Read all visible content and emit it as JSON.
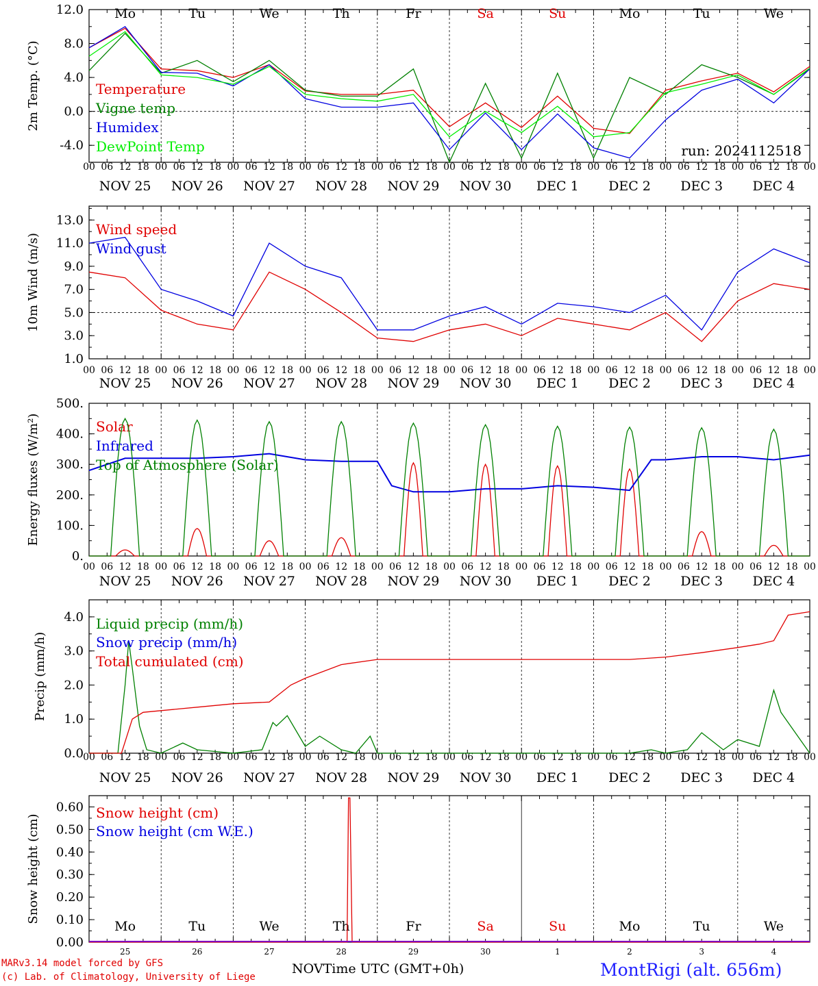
{
  "colors": {
    "red": "#e00000",
    "green": "#008000",
    "blue": "#0000e0",
    "lightgreen": "#00ee00",
    "purple": "#8000c0"
  },
  "footer": {
    "credit_line1": "MARv3.14 model forced by GFS",
    "credit_line2": "(c) Lab. of Climatology, University of Liege",
    "xaxis_label": "NOVTime UTC (GMT+0h)",
    "station": "MontRigi (alt. 656m)"
  },
  "chart_data": [
    {
      "type": "line",
      "ylabel": "2m Temp. (°C)",
      "ylim": [
        -6,
        12
      ],
      "yticks": [
        "12.0",
        "8.0",
        "4.0",
        "0.0",
        "-4.0"
      ],
      "ytick_values": [
        12,
        8,
        4,
        0,
        -4
      ],
      "reference_line": 0,
      "weekdays": [
        "Mo",
        "Tu",
        "We",
        "Th",
        "Fr",
        "Sa",
        "Su",
        "Mo",
        "Tu",
        "We"
      ],
      "weekday_colors": [
        "black",
        "black",
        "black",
        "black",
        "black",
        "red",
        "red",
        "black",
        "black",
        "black"
      ],
      "hour_ticks": [
        "00",
        "06",
        "12",
        "18"
      ],
      "date_labels": [
        "NOV 25",
        "NOV 26",
        "NOV 27",
        "NOV 28",
        "NOV 29",
        "NOV 30",
        "DEC  1",
        "DEC  2",
        "DEC  3",
        "DEC  4"
      ],
      "annotation": "run: 2024112518",
      "x_day": [
        0,
        0.5,
        1,
        1.5,
        2,
        2.5,
        3,
        3.5,
        4,
        4.5,
        5,
        5.5,
        6,
        6.5,
        7,
        7.5,
        8,
        8.5,
        9,
        9.5,
        10
      ],
      "series": [
        {
          "name": "Temperature",
          "color": "red",
          "values": [
            7.5,
            9.8,
            5.0,
            4.8,
            4.0,
            5.5,
            2.4,
            2.0,
            2.0,
            2.5,
            -1.8,
            1.0,
            -1.9,
            1.8,
            -2.0,
            -2.6,
            2.5,
            3.6,
            4.5,
            2.3,
            5.3
          ]
        },
        {
          "name": "Vigne temp",
          "color": "green",
          "values": [
            4.8,
            9.2,
            4.5,
            6.0,
            3.5,
            6.0,
            2.5,
            1.8,
            1.8,
            5.0,
            -6.0,
            3.3,
            -5.5,
            4.5,
            -5.5,
            4.0,
            2.0,
            5.5,
            4.0,
            2.0,
            5.0
          ]
        },
        {
          "name": "Humidex",
          "color": "blue",
          "values": [
            7.5,
            10.0,
            4.6,
            4.5,
            3.0,
            5.5,
            1.5,
            0.5,
            0.5,
            1.0,
            -4.5,
            -0.2,
            -4.5,
            -0.3,
            -4.3,
            -5.5,
            -1.0,
            2.5,
            3.8,
            1.0,
            5.0
          ]
        },
        {
          "name": "DewPoint Temp",
          "color": "lightgreen",
          "values": [
            6.5,
            9.4,
            4.3,
            4.0,
            3.2,
            5.3,
            2.0,
            1.5,
            1.2,
            2.0,
            -3.0,
            0.0,
            -2.5,
            0.6,
            -3.0,
            -2.5,
            2.2,
            3.2,
            4.3,
            2.0,
            5.1
          ]
        }
      ]
    },
    {
      "type": "line",
      "ylabel": "10m Wind (m/s)",
      "ylim": [
        1,
        14.2
      ],
      "yticks": [
        "13.0",
        "11.0",
        "9.0",
        "7.0",
        "5.0",
        "3.0",
        "1.0"
      ],
      "ytick_values": [
        13,
        11,
        9,
        7,
        5,
        3,
        1
      ],
      "reference_line": 5,
      "hour_ticks": [
        "00",
        "06",
        "12",
        "18"
      ],
      "date_labels": [
        "NOV 25",
        "NOV 26",
        "NOV 27",
        "NOV 28",
        "NOV 29",
        "NOV 30",
        "DEC  1",
        "DEC  2",
        "DEC  3",
        "DEC  4"
      ],
      "x_day": [
        0,
        0.5,
        1,
        1.5,
        2,
        2.5,
        3,
        3.5,
        4,
        4.5,
        5,
        5.5,
        6,
        6.5,
        7,
        7.5,
        8,
        8.5,
        9,
        9.5,
        10
      ],
      "series": [
        {
          "name": "Wind speed",
          "color": "red",
          "values": [
            8.5,
            8.0,
            5.2,
            4.0,
            3.5,
            8.5,
            7.0,
            5.0,
            2.8,
            2.5,
            3.5,
            4.0,
            3.0,
            4.5,
            4.0,
            3.5,
            5.0,
            2.5,
            6.0,
            7.5,
            7.0
          ]
        },
        {
          "name": "Wind gust",
          "color": "blue",
          "values": [
            11.0,
            11.5,
            7.0,
            6.0,
            4.7,
            11.0,
            9.0,
            8.0,
            3.5,
            3.5,
            4.7,
            5.5,
            4.0,
            5.8,
            5.5,
            5.0,
            6.5,
            3.5,
            8.5,
            10.5,
            9.3
          ]
        }
      ]
    },
    {
      "type": "line",
      "ylabel": "Energy fluxes (W/m²)",
      "ylim": [
        0,
        500
      ],
      "yticks": [
        "500.",
        "400.",
        "300.",
        "200.",
        "100.",
        "0."
      ],
      "ytick_values": [
        500,
        400,
        300,
        200,
        100,
        0
      ],
      "hour_ticks": [
        "00",
        "06",
        "12",
        "18"
      ],
      "date_labels": [
        "NOV 25",
        "NOV 26",
        "NOV 27",
        "NOV 28",
        "NOV 29",
        "NOV 30",
        "DEC  1",
        "DEC  2",
        "DEC  3",
        "DEC  4"
      ],
      "series": [
        {
          "name": "Solar",
          "color": "red",
          "daily_peak": [
            20,
            90,
            50,
            60,
            305,
            300,
            295,
            285,
            80,
            35
          ]
        },
        {
          "name": "Infrared",
          "color": "blue",
          "x_day": [
            0,
            0.5,
            1,
            1.5,
            2,
            2.5,
            3,
            3.5,
            4,
            4.2,
            4.5,
            5,
            5.5,
            6,
            6.5,
            7,
            7.5,
            7.8,
            8,
            8.5,
            9,
            9.5,
            10
          ],
          "values": [
            280,
            320,
            320,
            320,
            325,
            335,
            315,
            310,
            310,
            230,
            210,
            210,
            220,
            220,
            230,
            225,
            215,
            315,
            315,
            325,
            325,
            315,
            330
          ]
        },
        {
          "name": "Top of Atmosphere (Solar)",
          "color": "green",
          "daily_peak": [
            450,
            445,
            440,
            440,
            435,
            430,
            425,
            422,
            420,
            415
          ]
        }
      ]
    },
    {
      "type": "line",
      "ylabel": "Precip (mm/h)",
      "ylim": [
        0,
        4.5
      ],
      "yticks": [
        "4.0",
        "3.0",
        "2.0",
        "1.0",
        "0.0"
      ],
      "ytick_values": [
        4,
        3,
        2,
        1,
        0
      ],
      "hour_ticks": [
        "00",
        "06",
        "12",
        "18"
      ],
      "date_labels": [
        "NOV 25",
        "NOV 26",
        "NOV 27",
        "NOV 28",
        "NOV 29",
        "NOV 30",
        "DEC  1",
        "DEC  2",
        "DEC  3",
        "DEC  4"
      ],
      "series": [
        {
          "name": "Liquid precip (mm/h)",
          "color": "green",
          "x_day": [
            0,
            0.4,
            0.5,
            0.55,
            0.6,
            0.7,
            0.8,
            1,
            1.3,
            1.5,
            2,
            2.4,
            2.55,
            2.6,
            2.75,
            3,
            3.2,
            3.5,
            3.7,
            3.9,
            4.0,
            5,
            7.5,
            7.8,
            8,
            8.3,
            8.5,
            8.8,
            9,
            9.3,
            9.5,
            9.6,
            10
          ],
          "values": [
            0,
            0,
            2.0,
            3.3,
            2.5,
            0.8,
            0.1,
            0,
            0.3,
            0.1,
            0,
            0.1,
            0.9,
            0.8,
            1.1,
            0.2,
            0.5,
            0.1,
            0,
            0.5,
            0,
            0,
            0,
            0.1,
            0,
            0.1,
            0.6,
            0.1,
            0.4,
            0.2,
            1.85,
            1.2,
            0
          ]
        },
        {
          "name": "Snow precip (mm/h)",
          "color": "blue",
          "values": []
        },
        {
          "name": "Total cumulated (cm)",
          "color": "red",
          "x_day": [
            0,
            0.45,
            0.6,
            0.75,
            1,
            1.5,
            2,
            2.5,
            2.8,
            3,
            3.5,
            4,
            5,
            6,
            7,
            7.5,
            8,
            8.5,
            9,
            9.3,
            9.5,
            9.7,
            10
          ],
          "values": [
            0,
            0,
            1.0,
            1.2,
            1.25,
            1.35,
            1.45,
            1.5,
            2.0,
            2.2,
            2.6,
            2.75,
            2.75,
            2.75,
            2.75,
            2.75,
            2.82,
            2.95,
            3.1,
            3.2,
            3.3,
            4.05,
            4.15
          ]
        }
      ]
    },
    {
      "type": "line",
      "ylabel": "Snow height (cm)",
      "ylim": [
        0,
        0.65
      ],
      "yticks": [
        "0.60",
        "0.50",
        "0.40",
        "0.30",
        "0.20",
        "0.10",
        "0.00"
      ],
      "ytick_values": [
        0.6,
        0.5,
        0.4,
        0.3,
        0.2,
        0.1,
        0
      ],
      "weekdays": [
        "Mo",
        "Tu",
        "We",
        "Th",
        "Fr",
        "Sa",
        "Su",
        "Mo",
        "Tu",
        "We"
      ],
      "weekday_colors": [
        "black",
        "black",
        "black",
        "black",
        "black",
        "red",
        "red",
        "black",
        "black",
        "black"
      ],
      "day_numbers": [
        "25",
        "26",
        "27",
        "28",
        "29",
        "30",
        "1",
        "2",
        "3",
        "4"
      ],
      "series": [
        {
          "name": "Snow height (cm)",
          "color": "red",
          "x_day": [
            0,
            3.58,
            3.6,
            3.62,
            3.65,
            10
          ],
          "values": [
            0,
            0,
            0.64,
            0.64,
            0,
            0
          ]
        },
        {
          "name": "Snow height (cm W.E.)",
          "color": "blue",
          "values": []
        }
      ]
    }
  ]
}
